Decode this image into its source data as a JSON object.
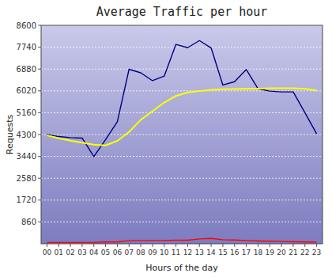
{
  "chart_data": {
    "type": "line",
    "title": "Average Traffic per hour",
    "x_label": "Hours of the day",
    "y_label": "Requests",
    "x": [
      0,
      1,
      2,
      3,
      4,
      5,
      6,
      7,
      8,
      9,
      10,
      11,
      12,
      13,
      14,
      15,
      16,
      17,
      18,
      19,
      20,
      21,
      22,
      23
    ],
    "series": [
      {
        "color": "navy",
        "values": [
          4300,
          4220,
          4180,
          4160,
          3430,
          4100,
          4800,
          6870,
          6730,
          6420,
          6600,
          7850,
          7720,
          8000,
          7710,
          6250,
          6380,
          6860,
          6100,
          6010,
          5980,
          5980,
          5160,
          4330
        ]
      },
      {
        "color": "yellow",
        "values": [
          4270,
          4150,
          4060,
          3980,
          3900,
          3870,
          4050,
          4400,
          4880,
          5220,
          5560,
          5820,
          5960,
          6010,
          6060,
          6080,
          6090,
          6100,
          6110,
          6120,
          6120,
          6120,
          6100,
          6040
        ]
      },
      {
        "color": "red",
        "values": [
          50,
          50,
          50,
          50,
          50,
          70,
          70,
          120,
          130,
          130,
          130,
          140,
          140,
          190,
          210,
          160,
          150,
          130,
          110,
          100,
          90,
          80,
          70,
          60
        ]
      }
    ],
    "xlim": [
      -0.5,
      23.5
    ],
    "xticks": [
      {
        "value": 0,
        "label": "00"
      },
      {
        "value": 1,
        "label": "01"
      },
      {
        "value": 2,
        "label": "02"
      },
      {
        "value": 3,
        "label": "03"
      },
      {
        "value": 4,
        "label": "04"
      },
      {
        "value": 5,
        "label": "05"
      },
      {
        "value": 6,
        "label": "06"
      },
      {
        "value": 7,
        "label": "07"
      },
      {
        "value": 8,
        "label": "08"
      },
      {
        "value": 9,
        "label": "09"
      },
      {
        "value": 10,
        "label": "10"
      },
      {
        "value": 11,
        "label": "11"
      },
      {
        "value": 12,
        "label": "12"
      },
      {
        "value": 13,
        "label": "13"
      },
      {
        "value": 14,
        "label": "14"
      },
      {
        "value": 15,
        "label": "15"
      },
      {
        "value": 16,
        "label": "16"
      },
      {
        "value": 17,
        "label": "17"
      },
      {
        "value": 18,
        "label": "18"
      },
      {
        "value": 19,
        "label": "19"
      },
      {
        "value": 20,
        "label": "20"
      },
      {
        "value": 21,
        "label": "21"
      },
      {
        "value": 22,
        "label": "22"
      },
      {
        "value": 23,
        "label": "23"
      }
    ],
    "ylim": [
      0,
      8600
    ],
    "yticks": [
      860,
      1720,
      2580,
      3440,
      4300,
      5160,
      6020,
      6880,
      7740,
      8600
    ],
    "grid": true
  }
}
